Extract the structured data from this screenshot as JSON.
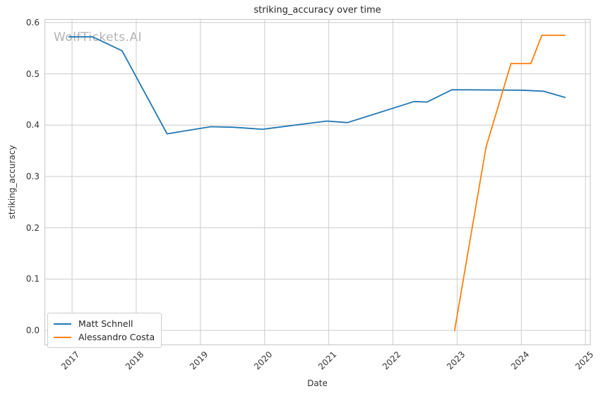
{
  "watermark": "WolfTickets.AI",
  "chart_data": {
    "type": "line",
    "title": "striking_accuracy over time",
    "xlabel": "Date",
    "ylabel": "striking_accuracy",
    "grid": true,
    "legend_position": "lower left",
    "xlim": [
      2016.576,
      2025.075
    ],
    "ylim": [
      -0.028,
      0.606
    ],
    "xticks": [
      2017,
      2018,
      2019,
      2020,
      2021,
      2022,
      2023,
      2024,
      2025
    ],
    "xtick_labels": [
      "2017",
      "2018",
      "2019",
      "2020",
      "2021",
      "2022",
      "2023",
      "2024",
      "2025"
    ],
    "yticks": [
      0.0,
      0.1,
      0.2,
      0.3,
      0.4,
      0.5,
      0.6
    ],
    "ytick_labels": [
      "0.0",
      "0.1",
      "0.2",
      "0.3",
      "0.4",
      "0.5",
      "0.6"
    ],
    "colors": {
      "grid": "#cccccc",
      "text": "#262626",
      "tick_text": "#333333"
    },
    "series": [
      {
        "name": "Matt Schnell",
        "color": "#1f77b4",
        "points": [
          [
            2016.95,
            0.572
          ],
          [
            2017.32,
            0.572
          ],
          [
            2017.78,
            0.545
          ],
          [
            2018.48,
            0.383
          ],
          [
            2019.16,
            0.397
          ],
          [
            2019.5,
            0.396
          ],
          [
            2019.97,
            0.392
          ],
          [
            2020.97,
            0.408
          ],
          [
            2021.29,
            0.405
          ],
          [
            2022.33,
            0.446
          ],
          [
            2022.53,
            0.445
          ],
          [
            2022.92,
            0.469
          ],
          [
            2024.02,
            0.468
          ],
          [
            2024.35,
            0.466
          ],
          [
            2024.68,
            0.454
          ]
        ]
      },
      {
        "name": "Alessandro Costa",
        "color": "#ff7f0e",
        "points": [
          [
            2022.96,
            0.0
          ],
          [
            2023.45,
            0.357
          ],
          [
            2023.84,
            0.52
          ],
          [
            2024.15,
            0.52
          ],
          [
            2024.32,
            0.575
          ],
          [
            2024.68,
            0.575
          ]
        ]
      }
    ]
  }
}
